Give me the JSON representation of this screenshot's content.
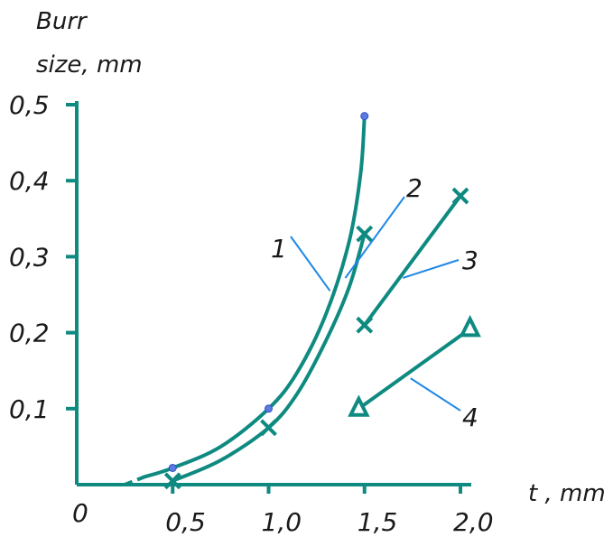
{
  "chart_data": {
    "type": "line",
    "title": "",
    "ylabel_lines": [
      "Burr",
      "size, mm"
    ],
    "xlabel": "t , mm",
    "origin_label": "0",
    "xlim": [
      0,
      2.0
    ],
    "ylim": [
      0,
      0.5
    ],
    "x_ticks": [
      {
        "value": 0.5,
        "label": "0,5"
      },
      {
        "value": 1.0,
        "label": "1,0"
      },
      {
        "value": 1.5,
        "label": "1,5"
      },
      {
        "value": 2.0,
        "label": "2,0"
      }
    ],
    "y_ticks": [
      {
        "value": 0.1,
        "label": "0,1"
      },
      {
        "value": 0.2,
        "label": "0,2"
      },
      {
        "value": 0.3,
        "label": "0,3"
      },
      {
        "value": 0.4,
        "label": "0,4"
      },
      {
        "value": 0.5,
        "label": "0,5"
      }
    ],
    "grid": false,
    "legend": "none",
    "line_color": "#0e8a80",
    "leader_color": "#1e88e5",
    "point_color": "#5a7be0",
    "series": [
      {
        "name": "1",
        "marker": "dot",
        "marked_points": [
          [
            0.5,
            0.022
          ],
          [
            1.0,
            0.1
          ],
          [
            1.5,
            0.485
          ]
        ],
        "curve": [
          [
            0.35,
            0.01
          ],
          [
            0.5,
            0.022
          ],
          [
            0.75,
            0.05
          ],
          [
            1.0,
            0.1
          ],
          [
            1.15,
            0.148
          ],
          [
            1.3,
            0.225
          ],
          [
            1.42,
            0.32
          ],
          [
            1.48,
            0.41
          ],
          [
            1.5,
            0.485
          ]
        ],
        "dashed_start": [
          [
            0.25,
            0.0
          ],
          [
            0.35,
            0.01
          ]
        ]
      },
      {
        "name": "2",
        "marker": "cross",
        "marked_points": [
          [
            0.5,
            0.005
          ],
          [
            1.0,
            0.075
          ],
          [
            1.5,
            0.33
          ]
        ],
        "curve": [
          [
            0.5,
            0.005
          ],
          [
            0.75,
            0.032
          ],
          [
            1.0,
            0.075
          ],
          [
            1.15,
            0.12
          ],
          [
            1.3,
            0.19
          ],
          [
            1.42,
            0.26
          ],
          [
            1.5,
            0.33
          ]
        ]
      },
      {
        "name": "3",
        "marker": "cross",
        "marked_points": [
          [
            1.5,
            0.21
          ],
          [
            2.0,
            0.38
          ]
        ],
        "curve": [
          [
            1.5,
            0.21
          ],
          [
            2.0,
            0.38
          ]
        ]
      },
      {
        "name": "4",
        "marker": "triangle",
        "marked_points": [
          [
            1.47,
            0.1
          ],
          [
            2.05,
            0.205
          ]
        ],
        "curve": [
          [
            1.47,
            0.1
          ],
          [
            2.05,
            0.205
          ]
        ]
      }
    ]
  }
}
